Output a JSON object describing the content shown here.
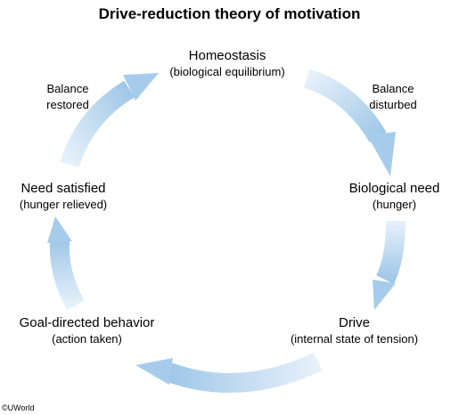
{
  "title": "Drive-reduction theory of motivation",
  "nodes": [
    {
      "main": "Homeostasis",
      "sub": "(biological equilibrium)"
    },
    {
      "main": "Biological need",
      "sub": "(hunger)"
    },
    {
      "main": "Drive",
      "sub": "(internal state of tension)"
    },
    {
      "main": "Goal-directed behavior",
      "sub": "(action taken)"
    },
    {
      "main": "Need satisfied",
      "sub": "(hunger relieved)"
    }
  ],
  "edge_labels": {
    "balance_disturbed": [
      "Balance",
      "disturbed"
    ],
    "balance_restored": [
      "Balance",
      "restored"
    ]
  },
  "copyright": "©UWorld",
  "colors": {
    "arrow_dark": "#9fc7e8",
    "arrow_light": "#e7f1fa",
    "text": "#000000"
  }
}
